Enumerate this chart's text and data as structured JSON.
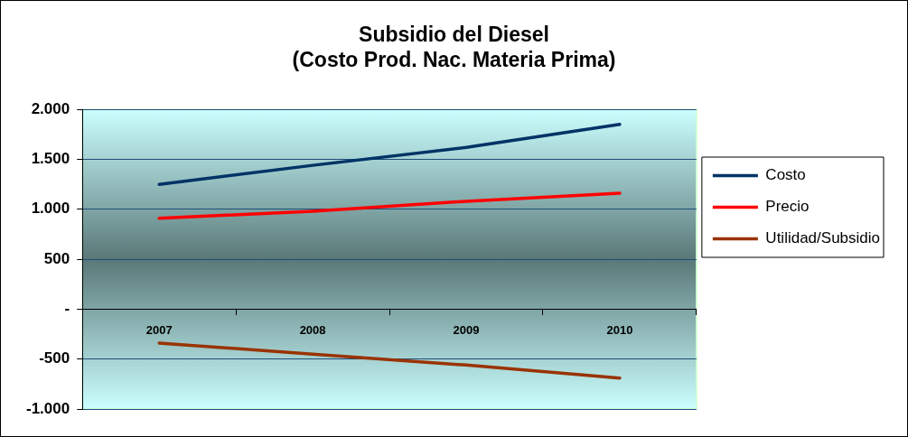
{
  "chart_data": {
    "type": "line",
    "title": "Subsidio del Diesel\n(Costo Prod. Nac. Materia Prima)",
    "categories": [
      "2007",
      "2008",
      "2009",
      "2010"
    ],
    "series": [
      {
        "name": "Costo",
        "color": "#003366",
        "values": [
          1250,
          1440,
          1620,
          1850
        ]
      },
      {
        "name": "Precio",
        "color": "#ff0000",
        "values": [
          910,
          980,
          1080,
          1160
        ]
      },
      {
        "name": "Utilidad/Subsidio",
        "color": "#993300",
        "values": [
          -340,
          -450,
          -560,
          -690
        ]
      }
    ],
    "ylim": [
      -1000,
      2000
    ],
    "yticks": [
      {
        "value": 2000,
        "label": "2.000"
      },
      {
        "value": 1500,
        "label": "1.500"
      },
      {
        "value": 1000,
        "label": "1.000"
      },
      {
        "value": 500,
        "label": "500"
      },
      {
        "value": 0,
        "label": "-"
      },
      {
        "value": -500,
        "label": "-500"
      },
      {
        "value": -1000,
        "label": "-1.000"
      }
    ],
    "grid": "y",
    "legend": "right",
    "marker": "none",
    "line_style": "solid"
  }
}
